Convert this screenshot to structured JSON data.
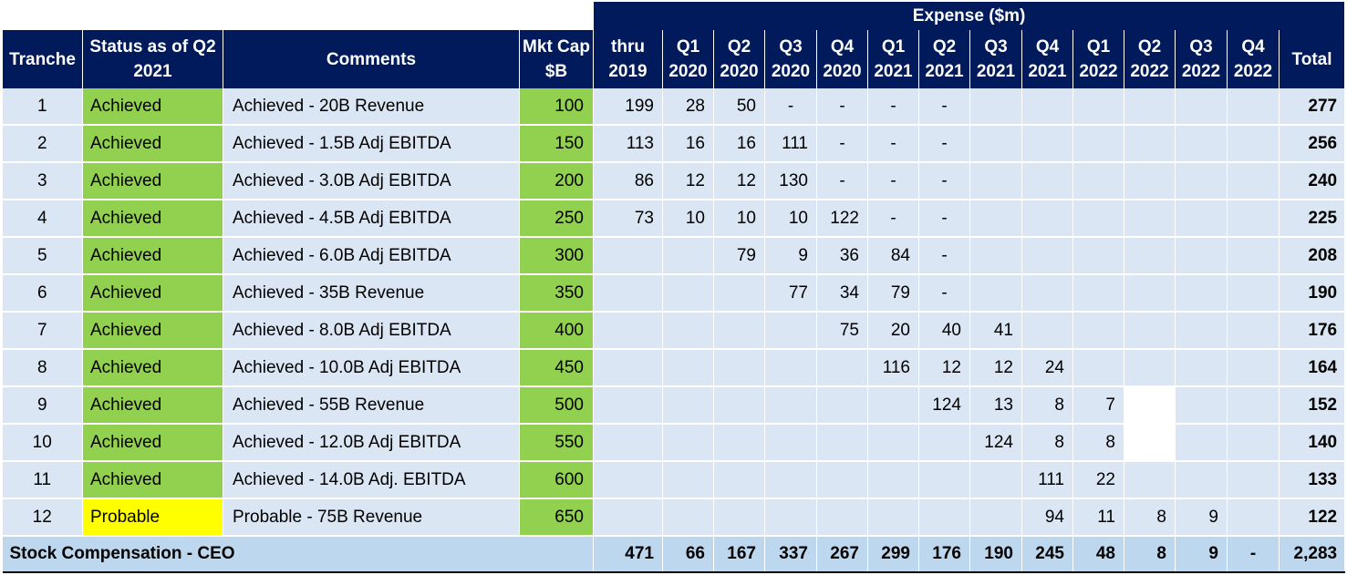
{
  "expense_title": "Expense ($m)",
  "headers": {
    "tranche": "Tranche",
    "status": "Status as of Q2 2021",
    "comments": "Comments",
    "mkt_cap": "Mkt Cap $B",
    "periods": [
      "thru 2019",
      "Q1 2020",
      "Q2 2020",
      "Q3 2020",
      "Q4 2020",
      "Q1 2021",
      "Q2 2021",
      "Q3 2021",
      "Q4 2021",
      "Q1 2022",
      "Q2 2022",
      "Q3 2022",
      "Q4 2022"
    ],
    "total": "Total"
  },
  "rows": [
    {
      "tranche": "1",
      "status": "Achieved",
      "status_color": "#92d050",
      "comment": "Achieved - 20B Revenue",
      "mkt_cap": "100",
      "values": [
        "199",
        "28",
        "50",
        "-",
        "-",
        "-",
        "-",
        "",
        "",
        "",
        "",
        "",
        ""
      ],
      "total": "277"
    },
    {
      "tranche": "2",
      "status": "Achieved",
      "status_color": "#92d050",
      "comment": "Achieved - 1.5B Adj EBITDA",
      "mkt_cap": "150",
      "values": [
        "113",
        "16",
        "16",
        "111",
        "-",
        "-",
        "-",
        "",
        "",
        "",
        "",
        "",
        ""
      ],
      "total": "256"
    },
    {
      "tranche": "3",
      "status": "Achieved",
      "status_color": "#92d050",
      "comment": "Achieved - 3.0B Adj EBITDA",
      "mkt_cap": "200",
      "values": [
        "86",
        "12",
        "12",
        "130",
        "-",
        "-",
        "-",
        "",
        "",
        "",
        "",
        "",
        ""
      ],
      "total": "240"
    },
    {
      "tranche": "4",
      "status": "Achieved",
      "status_color": "#92d050",
      "comment": "Achieved - 4.5B Adj EBITDA",
      "mkt_cap": "250",
      "values": [
        "73",
        "10",
        "10",
        "10",
        "122",
        "-",
        "-",
        "",
        "",
        "",
        "",
        "",
        ""
      ],
      "total": "225"
    },
    {
      "tranche": "5",
      "status": "Achieved",
      "status_color": "#92d050",
      "comment": "Achieved - 6.0B Adj EBITDA",
      "mkt_cap": "300",
      "values": [
        "",
        "",
        "79",
        "9",
        "36",
        "84",
        "-",
        "",
        "",
        "",
        "",
        "",
        ""
      ],
      "total": "208"
    },
    {
      "tranche": "6",
      "status": "Achieved",
      "status_color": "#92d050",
      "comment": "Achieved - 35B Revenue",
      "mkt_cap": "350",
      "values": [
        "",
        "",
        "",
        "77",
        "34",
        "79",
        "-",
        "",
        "",
        "",
        "",
        "",
        ""
      ],
      "total": "190"
    },
    {
      "tranche": "7",
      "status": "Achieved",
      "status_color": "#92d050",
      "comment": "Achieved - 8.0B Adj EBITDA",
      "mkt_cap": "400",
      "values": [
        "",
        "",
        "",
        "",
        "75",
        "20",
        "40",
        "41",
        "",
        "",
        "",
        "",
        ""
      ],
      "total": "176"
    },
    {
      "tranche": "8",
      "status": "Achieved",
      "status_color": "#92d050",
      "comment": "Achieved - 10.0B Adj EBITDA",
      "mkt_cap": "450",
      "values": [
        "",
        "",
        "",
        "",
        "",
        "116",
        "12",
        "12",
        "24",
        "",
        "",
        "",
        ""
      ],
      "total": "164"
    },
    {
      "tranche": "9",
      "status": "Achieved",
      "status_color": "#92d050",
      "comment": "Achieved - 55B Revenue",
      "mkt_cap": "500",
      "values": [
        "",
        "",
        "",
        "",
        "",
        "",
        "124",
        "13",
        "8",
        "7",
        "",
        "",
        ""
      ],
      "total": "152"
    },
    {
      "tranche": "10",
      "status": "Achieved",
      "status_color": "#92d050",
      "comment": "Achieved - 12.0B Adj EBITDA",
      "mkt_cap": "550",
      "values": [
        "",
        "",
        "",
        "",
        "",
        "",
        "",
        "124",
        "8",
        "8",
        "",
        "",
        ""
      ],
      "total": "140"
    },
    {
      "tranche": "11",
      "status": "Achieved",
      "status_color": "#92d050",
      "comment": "Achieved - 14.0B Adj. EBITDA",
      "mkt_cap": "600",
      "values": [
        "",
        "",
        "",
        "",
        "",
        "",
        "",
        "",
        "111",
        "22",
        "",
        "",
        ""
      ],
      "total": "133"
    },
    {
      "tranche": "12",
      "status": "Probable",
      "status_color": "#ffff00",
      "comment": "Probable - 75B Revenue",
      "mkt_cap": "650",
      "values": [
        "",
        "",
        "",
        "",
        "",
        "",
        "",
        "",
        "94",
        "11",
        "8",
        "9",
        ""
      ],
      "total": "122"
    }
  ],
  "footer": {
    "label": "Stock Compensation - CEO",
    "values": [
      "471",
      "66",
      "167",
      "337",
      "267",
      "299",
      "176",
      "190",
      "245",
      "48",
      "8",
      "9",
      "-"
    ],
    "total": "2,283"
  }
}
